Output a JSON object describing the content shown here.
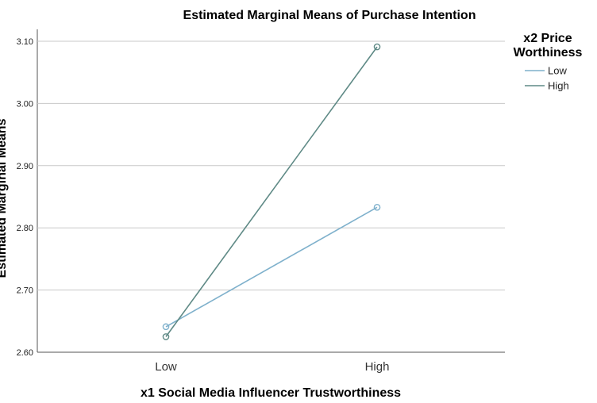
{
  "chart_data": {
    "type": "line",
    "title": "Estimated Marginal Means of Purchase Intention",
    "xlabel": "x1 Social Media Influencer Trustworthiness",
    "ylabel": "Estimated Marginal Means",
    "categories": [
      "Low",
      "High"
    ],
    "ylim": [
      2.6,
      3.1
    ],
    "yticks": [
      "2.60",
      "2.70",
      "2.80",
      "2.90",
      "3.00",
      "3.10"
    ],
    "grid": true,
    "legend": {
      "title_lines": [
        "x2 Price",
        "Worthiness"
      ],
      "placement": "right"
    },
    "series": [
      {
        "name": "Low",
        "color": "#7fb1cc",
        "values": [
          2.641,
          2.833
        ]
      },
      {
        "name": "High",
        "color": "#5f8a86",
        "values": [
          2.625,
          3.091
        ]
      }
    ]
  }
}
